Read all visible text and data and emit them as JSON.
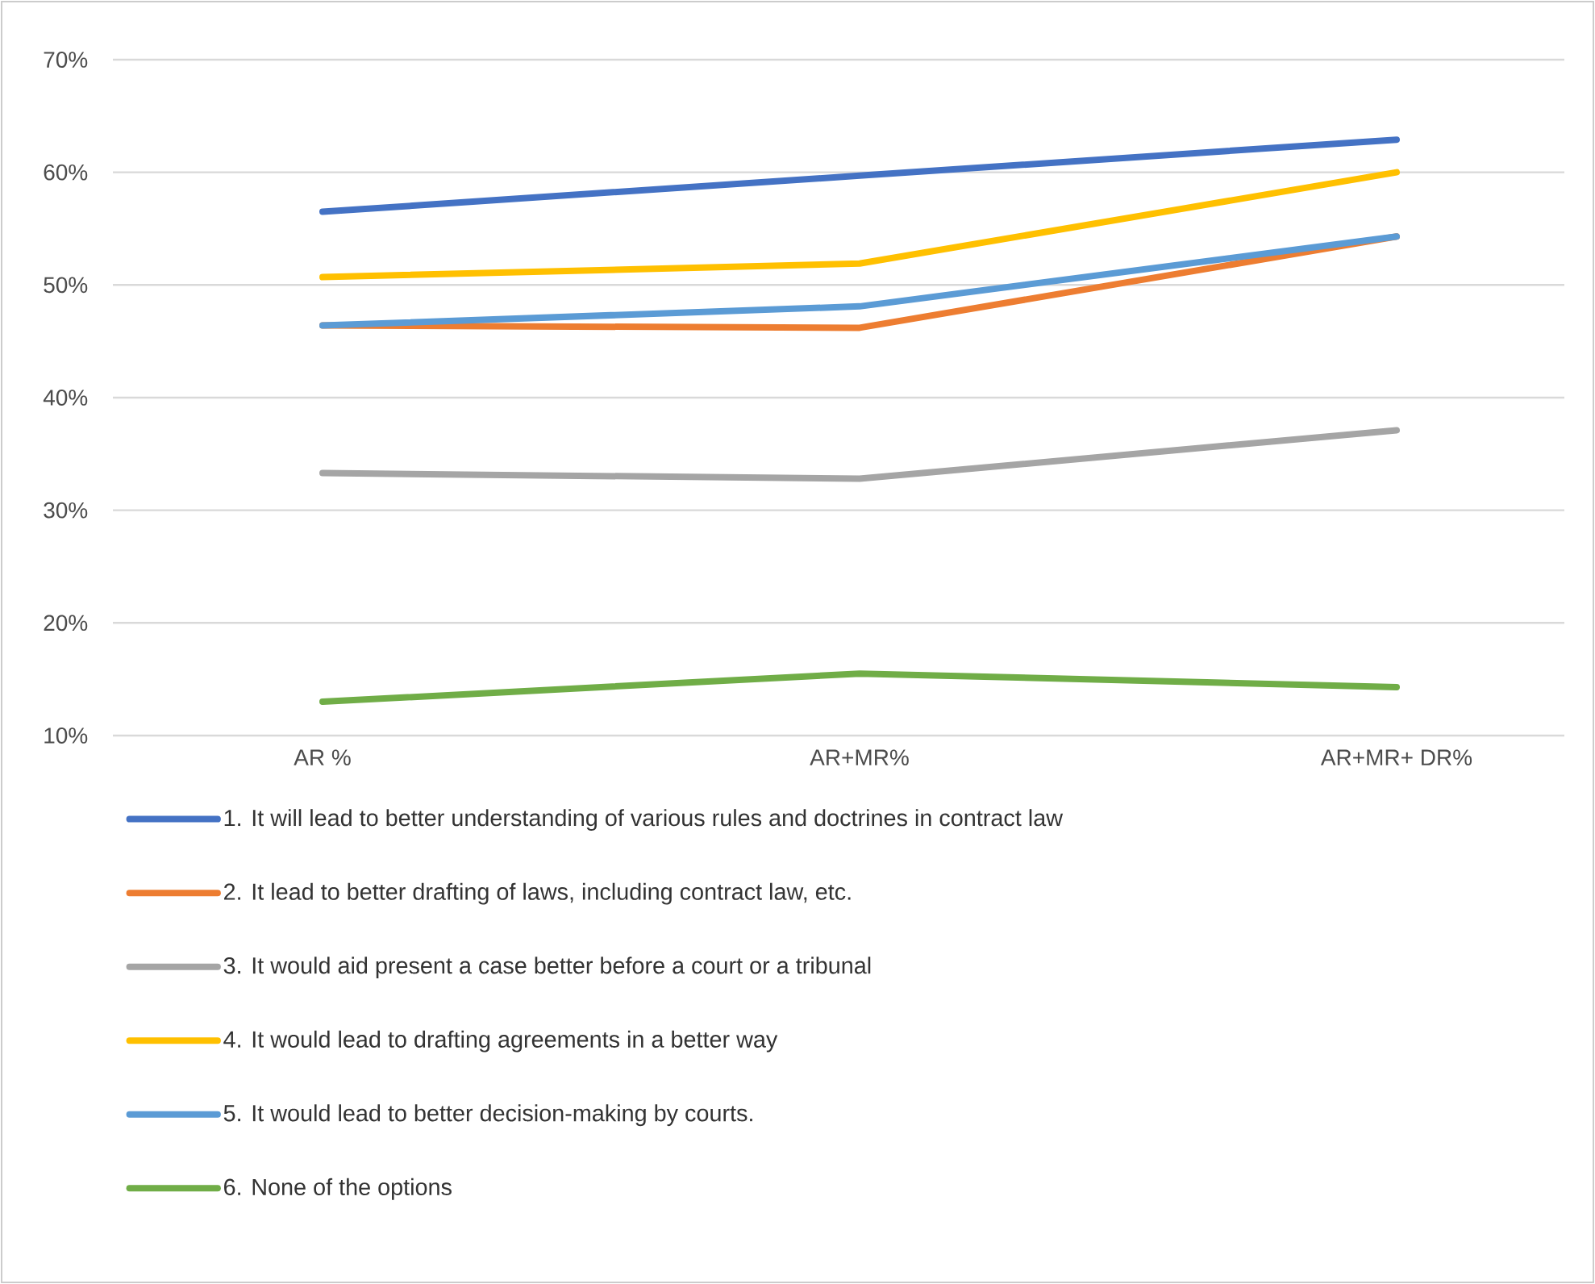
{
  "chart_data": {
    "type": "line",
    "categories": [
      "AR %",
      "AR+MR%",
      "AR+MR+ DR%"
    ],
    "series": [
      {
        "name": "1. It will lead to better understanding of various rules and doctrines in contract law",
        "color": "#4472c4",
        "values": [
          56.5,
          59.7,
          62.9
        ]
      },
      {
        "name": "2. It lead to better drafting of laws, including contract law, etc.",
        "color": "#ed7d31",
        "values": [
          46.4,
          46.2,
          54.3
        ]
      },
      {
        "name": "3. It would aid present a case better before a court or a tribunal",
        "color": "#a5a5a5",
        "values": [
          33.3,
          32.8,
          37.1
        ]
      },
      {
        "name": "4. It would lead to drafting agreements in a better way",
        "color": "#ffc000",
        "values": [
          50.7,
          51.9,
          60.0
        ]
      },
      {
        "name": "5. It would lead to better decision-making by courts.",
        "color": "#5b9bd5",
        "values": [
          46.4,
          48.1,
          54.3
        ]
      },
      {
        "name": "6. None of the options",
        "color": "#70ad47",
        "values": [
          13.0,
          15.5,
          14.3
        ]
      }
    ],
    "ylim": [
      10,
      70
    ],
    "yticks": [
      {
        "value": 10,
        "label": "10%"
      },
      {
        "value": 20,
        "label": "20%"
      },
      {
        "value": 30,
        "label": "30%"
      },
      {
        "value": 40,
        "label": "40%"
      },
      {
        "value": 50,
        "label": "50%"
      },
      {
        "value": 60,
        "label": "60%"
      },
      {
        "value": 70,
        "label": "70%"
      }
    ],
    "grid": "y",
    "legend": "bottom",
    "marker": "none",
    "line_style": "solid"
  }
}
